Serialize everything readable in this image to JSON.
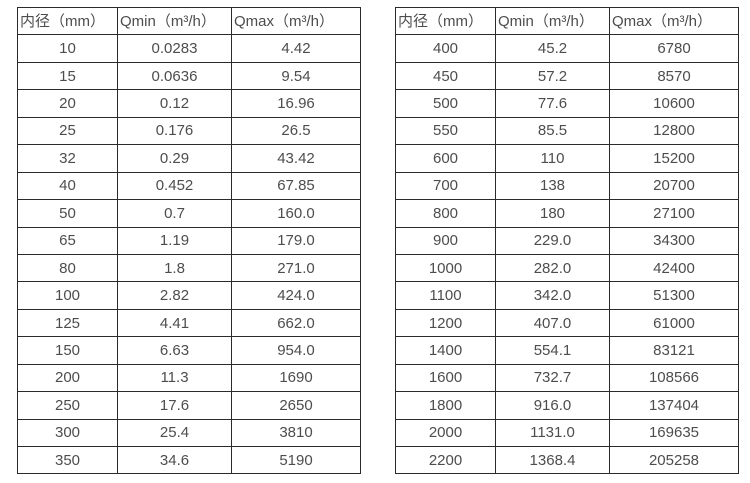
{
  "page": {
    "background_color": "#ffffff",
    "text_color": "#4d4d4d",
    "border_color": "#2b2b2b"
  },
  "tables": [
    {
      "name": "small-diameter-flow-table",
      "headers": [
        "内径（mm）",
        "Qmin（m³/h）",
        "Qmax（m³/h）"
      ],
      "rows": [
        [
          "10",
          "0.0283",
          "4.42"
        ],
        [
          "15",
          "0.0636",
          "9.54"
        ],
        [
          "20",
          "0.12",
          "16.96"
        ],
        [
          "25",
          "0.176",
          "26.5"
        ],
        [
          "32",
          "0.29",
          "43.42"
        ],
        [
          "40",
          "0.452",
          "67.85"
        ],
        [
          "50",
          "0.7",
          "160.0"
        ],
        [
          "65",
          "1.19",
          "179.0"
        ],
        [
          "80",
          "1.8",
          "271.0"
        ],
        [
          "100",
          "2.82",
          "424.0"
        ],
        [
          "125",
          "4.41",
          "662.0"
        ],
        [
          "150",
          "6.63",
          "954.0"
        ],
        [
          "200",
          "11.3",
          "1690"
        ],
        [
          "250",
          "17.6",
          "2650"
        ],
        [
          "300",
          "25.4",
          "3810"
        ],
        [
          "350",
          "34.6",
          "5190"
        ]
      ]
    },
    {
      "name": "large-diameter-flow-table",
      "headers": [
        "内径（mm）",
        "Qmin（m³/h）",
        "Qmax（m³/h）"
      ],
      "rows": [
        [
          "400",
          "45.2",
          "6780"
        ],
        [
          "450",
          "57.2",
          "8570"
        ],
        [
          "500",
          "77.6",
          "10600"
        ],
        [
          "550",
          "85.5",
          "12800"
        ],
        [
          "600",
          "110",
          "15200"
        ],
        [
          "700",
          "138",
          "20700"
        ],
        [
          "800",
          "180",
          "27100"
        ],
        [
          "900",
          "229.0",
          "34300"
        ],
        [
          "1000",
          "282.0",
          "42400"
        ],
        [
          "1100",
          "342.0",
          "51300"
        ],
        [
          "1200",
          "407.0",
          "61000"
        ],
        [
          "1400",
          "554.1",
          "83121"
        ],
        [
          "1600",
          "732.7",
          "108566"
        ],
        [
          "1800",
          "916.0",
          "137404"
        ],
        [
          "2000",
          "1131.0",
          "169635"
        ],
        [
          "2200",
          "1368.4",
          "205258"
        ]
      ]
    }
  ],
  "column_semantics": {
    "names": [
      "cell-diameter",
      "cell-qmin",
      "cell-qmax"
    ],
    "header_names": [
      "header-diameter",
      "header-qmin",
      "header-qmax"
    ]
  }
}
